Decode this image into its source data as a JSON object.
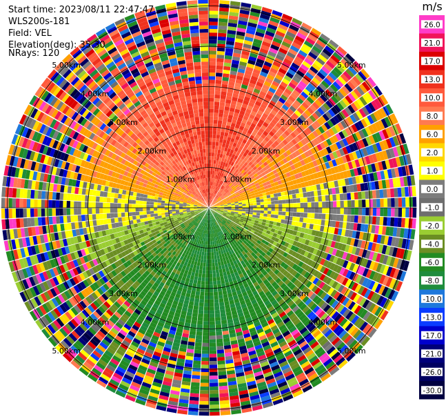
{
  "header": {
    "start_time": "Start time: 2023/08/11 22:47:47",
    "instrument": "WLS200s-181",
    "field": "Field: VEL",
    "elevation": "Elevation(deg): 35.30",
    "nrays": "NRays: 120"
  },
  "colorbar": {
    "unit": "m/s",
    "ticks": [
      "26.0",
      "21.0",
      "17.0",
      "13.0",
      "10.0",
      "8.0",
      "6.0",
      "2.0",
      "1.0",
      "0.0",
      "-1.0",
      "-2.0",
      "-4.0",
      "-6.0",
      "-8.0",
      "-10.0",
      "-13.0",
      "-17.0",
      "-21.0",
      "-26.0",
      "-30.0"
    ],
    "colors": [
      "#ff3cc8",
      "#f0145a",
      "#dc0000",
      "#f0321e",
      "#ff5a3c",
      "#ff7a50",
      "#ffa000",
      "#ffd700",
      "#ffff00",
      "#7c7c7c",
      "#6e6e6e",
      "#9acd32",
      "#6b8e23",
      "#228b22",
      "#1e8c3c",
      "#1e78dc",
      "#0a3cff",
      "#0000cd",
      "#00007a",
      "#000060",
      "#000040"
    ]
  },
  "chart_data": {
    "type": "heatmap",
    "projection": "polar PPI",
    "field": "VEL",
    "units": "m/s",
    "nrays": 120,
    "range_rings_km": [
      1.0,
      2.0,
      3.0,
      4.0,
      5.0
    ],
    "ring_labels": [
      "1.00km",
      "2.00km",
      "3.00km",
      "4.00km",
      "5.00km"
    ],
    "clim": [
      -30.0,
      26.0
    ],
    "pattern": "positive velocities (yellow/orange) in northern half, negative velocities (green/blue) in southern half, noisy speckle beyond ~3.5 km"
  }
}
